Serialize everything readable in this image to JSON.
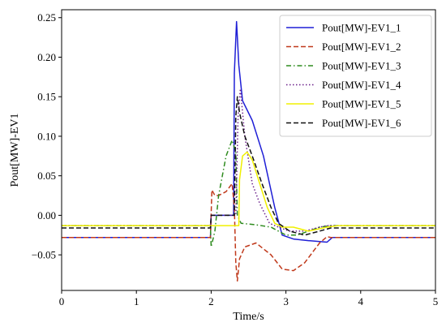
{
  "chart_data": {
    "type": "line",
    "title": "",
    "xlabel": "Time/s",
    "ylabel": "Pout[MW]-EV1",
    "xlim": [
      0,
      5
    ],
    "ylim": [
      -0.095,
      0.26
    ],
    "x_ticks": [
      0,
      1,
      2,
      3,
      4,
      5
    ],
    "x_tick_labels": [
      "0",
      "1",
      "2",
      "3",
      "4",
      "5"
    ],
    "y_ticks": [
      -0.05,
      0.0,
      0.05,
      0.1,
      0.15,
      0.2,
      0.25
    ],
    "y_tick_labels": [
      "−0.05",
      "0.00",
      "0.05",
      "0.10",
      "0.15",
      "0.20",
      "0.25"
    ],
    "grid": false,
    "legend_position": "top-right",
    "series": [
      {
        "name": "Pout[MW]-EV1_1",
        "color": "#1f1fd6",
        "dash": "solid",
        "x": [
          0,
          1.99,
          2.0,
          2.3,
          2.31,
          2.34,
          2.37,
          2.42,
          2.55,
          2.7,
          2.85,
          2.95,
          3.1,
          3.3,
          3.55,
          3.62,
          3.7,
          5.0
        ],
        "y": [
          -0.028,
          -0.028,
          0.0,
          0.0,
          0.18,
          0.245,
          0.19,
          0.145,
          0.12,
          0.075,
          0.01,
          -0.025,
          -0.03,
          -0.032,
          -0.034,
          -0.028,
          -0.028,
          -0.028
        ]
      },
      {
        "name": "Pout[MW]-EV1_2",
        "color": "#c0391b",
        "dash": "dashed",
        "x": [
          0,
          1.99,
          2.01,
          2.05,
          2.1,
          2.2,
          2.28,
          2.31,
          2.33,
          2.35,
          2.38,
          2.45,
          2.6,
          2.8,
          2.95,
          3.1,
          3.25,
          3.45,
          3.55,
          3.6,
          5.0
        ],
        "y": [
          -0.028,
          -0.028,
          0.032,
          0.025,
          0.025,
          0.03,
          0.04,
          0.01,
          -0.06,
          -0.083,
          -0.055,
          -0.04,
          -0.035,
          -0.05,
          -0.068,
          -0.07,
          -0.06,
          -0.035,
          -0.027,
          -0.028,
          -0.028
        ]
      },
      {
        "name": "Pout[MW]-EV1_3",
        "color": "#2e8b1e",
        "dash": "dashdot",
        "x": [
          0,
          1.99,
          2.0,
          2.05,
          2.1,
          2.2,
          2.28,
          2.33,
          2.35,
          2.4,
          2.6,
          2.8,
          3.0,
          3.15,
          3.3,
          3.45,
          3.6,
          5.0
        ],
        "y": [
          -0.013,
          -0.013,
          -0.04,
          -0.02,
          0.025,
          0.075,
          0.095,
          0.08,
          0.0,
          -0.01,
          -0.012,
          -0.015,
          -0.025,
          -0.025,
          -0.02,
          -0.015,
          -0.013,
          -0.013
        ]
      },
      {
        "name": "Pout[MW]-EV1_4",
        "color": "#6a1f8a",
        "dash": "dotted",
        "x": [
          0,
          1.99,
          2.0,
          2.33,
          2.36,
          2.39,
          2.45,
          2.55,
          2.65,
          2.78,
          2.9,
          3.05,
          3.25,
          3.45,
          3.55,
          5.0
        ],
        "y": [
          -0.013,
          -0.013,
          0.0,
          0.0,
          0.125,
          0.16,
          0.1,
          0.04,
          0.015,
          -0.01,
          -0.015,
          -0.02,
          -0.02,
          -0.015,
          -0.013,
          -0.013
        ]
      },
      {
        "name": "Pout[MW]-EV1_5",
        "color": "#f0f000",
        "dash": "solid",
        "x": [
          0,
          2.37,
          2.38,
          2.42,
          2.48,
          2.55,
          2.65,
          2.75,
          2.85,
          2.95,
          3.1,
          3.3,
          3.55,
          3.7,
          5.0
        ],
        "y": [
          -0.013,
          -0.013,
          0.045,
          0.075,
          0.08,
          0.07,
          0.04,
          0.01,
          -0.01,
          -0.015,
          -0.015,
          -0.02,
          -0.015,
          -0.013,
          -0.013
        ]
      },
      {
        "name": "Pout[MW]-EV1_6",
        "color": "#111111",
        "dash": "dashed",
        "x": [
          0,
          1.99,
          2.0,
          2.31,
          2.33,
          2.35,
          2.38,
          2.45,
          2.55,
          2.68,
          2.8,
          2.9,
          3.05,
          3.25,
          3.45,
          3.6,
          5.0
        ],
        "y": [
          -0.016,
          -0.016,
          0.0,
          0.0,
          0.125,
          0.15,
          0.13,
          0.1,
          0.075,
          0.04,
          0.01,
          -0.01,
          -0.02,
          -0.025,
          -0.02,
          -0.016,
          -0.016
        ]
      }
    ]
  }
}
